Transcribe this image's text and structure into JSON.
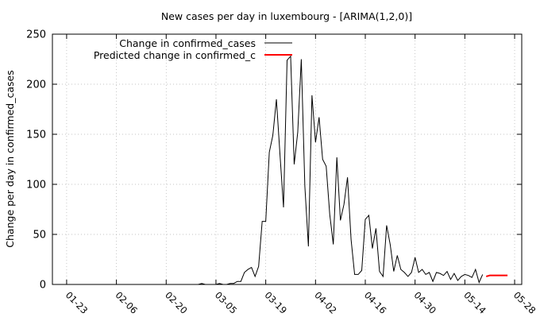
{
  "chart_data": {
    "type": "line",
    "title": "New cases per day in luxembourg -  [ARIMA(1,2,0)]",
    "xlabel": "",
    "ylabel": "Change per day in confirmed_cases",
    "x_ticks": [
      "01-23",
      "02-06",
      "02-20",
      "03-05",
      "03-19",
      "04-02",
      "04-16",
      "04-30",
      "05-14",
      "05-28"
    ],
    "y_ticks": [
      "0",
      "50",
      "100",
      "150",
      "200",
      "250"
    ],
    "xlim": [
      "2020-01-19",
      "2020-05-30"
    ],
    "ylim": [
      0,
      250
    ],
    "grid": true,
    "legend_position": "top-right",
    "series": [
      {
        "name": "Change in confirmed_cases",
        "color": "#000000",
        "points": [
          [
            "2020-02-29",
            0
          ],
          [
            "2020-03-01",
            1
          ],
          [
            "2020-03-02",
            0
          ],
          [
            "2020-03-03",
            0
          ],
          [
            "2020-03-04",
            0
          ],
          [
            "2020-03-05",
            0
          ],
          [
            "2020-03-06",
            1
          ],
          [
            "2020-03-07",
            0
          ],
          [
            "2020-03-08",
            0
          ],
          [
            "2020-03-09",
            1
          ],
          [
            "2020-03-10",
            1
          ],
          [
            "2020-03-11",
            3
          ],
          [
            "2020-03-12",
            3
          ],
          [
            "2020-03-13",
            12
          ],
          [
            "2020-03-14",
            15
          ],
          [
            "2020-03-15",
            17
          ],
          [
            "2020-03-16",
            8
          ],
          [
            "2020-03-17",
            18
          ],
          [
            "2020-03-18",
            63
          ],
          [
            "2020-03-19",
            63
          ],
          [
            "2020-03-20",
            132
          ],
          [
            "2020-03-21",
            149
          ],
          [
            "2020-03-22",
            185
          ],
          [
            "2020-03-23",
            130
          ],
          [
            "2020-03-24",
            77
          ],
          [
            "2020-03-25",
            224
          ],
          [
            "2020-03-26",
            228
          ],
          [
            "2020-03-27",
            120
          ],
          [
            "2020-03-28",
            152
          ],
          [
            "2020-03-29",
            225
          ],
          [
            "2020-03-30",
            98
          ],
          [
            "2020-03-31",
            38
          ],
          [
            "2020-04-01",
            189
          ],
          [
            "2020-04-02",
            142
          ],
          [
            "2020-04-03",
            167
          ],
          [
            "2020-04-04",
            125
          ],
          [
            "2020-04-05",
            118
          ],
          [
            "2020-04-06",
            70
          ],
          [
            "2020-04-07",
            40
          ],
          [
            "2020-04-08",
            127
          ],
          [
            "2020-04-09",
            64
          ],
          [
            "2020-04-10",
            80
          ],
          [
            "2020-04-11",
            107
          ],
          [
            "2020-04-12",
            45
          ],
          [
            "2020-04-13",
            10
          ],
          [
            "2020-04-14",
            10
          ],
          [
            "2020-04-15",
            14
          ],
          [
            "2020-04-16",
            65
          ],
          [
            "2020-04-17",
            69
          ],
          [
            "2020-04-18",
            36
          ],
          [
            "2020-04-19",
            56
          ],
          [
            "2020-04-20",
            13
          ],
          [
            "2020-04-21",
            8
          ],
          [
            "2020-04-22",
            59
          ],
          [
            "2020-04-23",
            40
          ],
          [
            "2020-04-24",
            13
          ],
          [
            "2020-04-25",
            29
          ],
          [
            "2020-04-26",
            15
          ],
          [
            "2020-04-27",
            12
          ],
          [
            "2020-04-28",
            8
          ],
          [
            "2020-04-29",
            12
          ],
          [
            "2020-04-30",
            27
          ],
          [
            "2020-05-01",
            12
          ],
          [
            "2020-05-02",
            15
          ],
          [
            "2020-05-03",
            10
          ],
          [
            "2020-05-04",
            12
          ],
          [
            "2020-05-05",
            3
          ],
          [
            "2020-05-06",
            12
          ],
          [
            "2020-05-07",
            11
          ],
          [
            "2020-05-08",
            9
          ],
          [
            "2020-05-09",
            13
          ],
          [
            "2020-05-10",
            5
          ],
          [
            "2020-05-11",
            11
          ],
          [
            "2020-05-12",
            4
          ],
          [
            "2020-05-13",
            8
          ],
          [
            "2020-05-14",
            10
          ],
          [
            "2020-05-15",
            9
          ],
          [
            "2020-05-16",
            7
          ],
          [
            "2020-05-17",
            15
          ],
          [
            "2020-05-18",
            2
          ],
          [
            "2020-05-19",
            10
          ]
        ]
      },
      {
        "name": "Predicted change in confirmed_c",
        "color": "#ff0000",
        "points": [
          [
            "2020-05-20",
            8
          ],
          [
            "2020-05-21",
            9
          ],
          [
            "2020-05-22",
            9
          ],
          [
            "2020-05-23",
            9
          ],
          [
            "2020-05-24",
            9
          ],
          [
            "2020-05-25",
            9
          ],
          [
            "2020-05-26",
            9
          ]
        ]
      }
    ]
  }
}
